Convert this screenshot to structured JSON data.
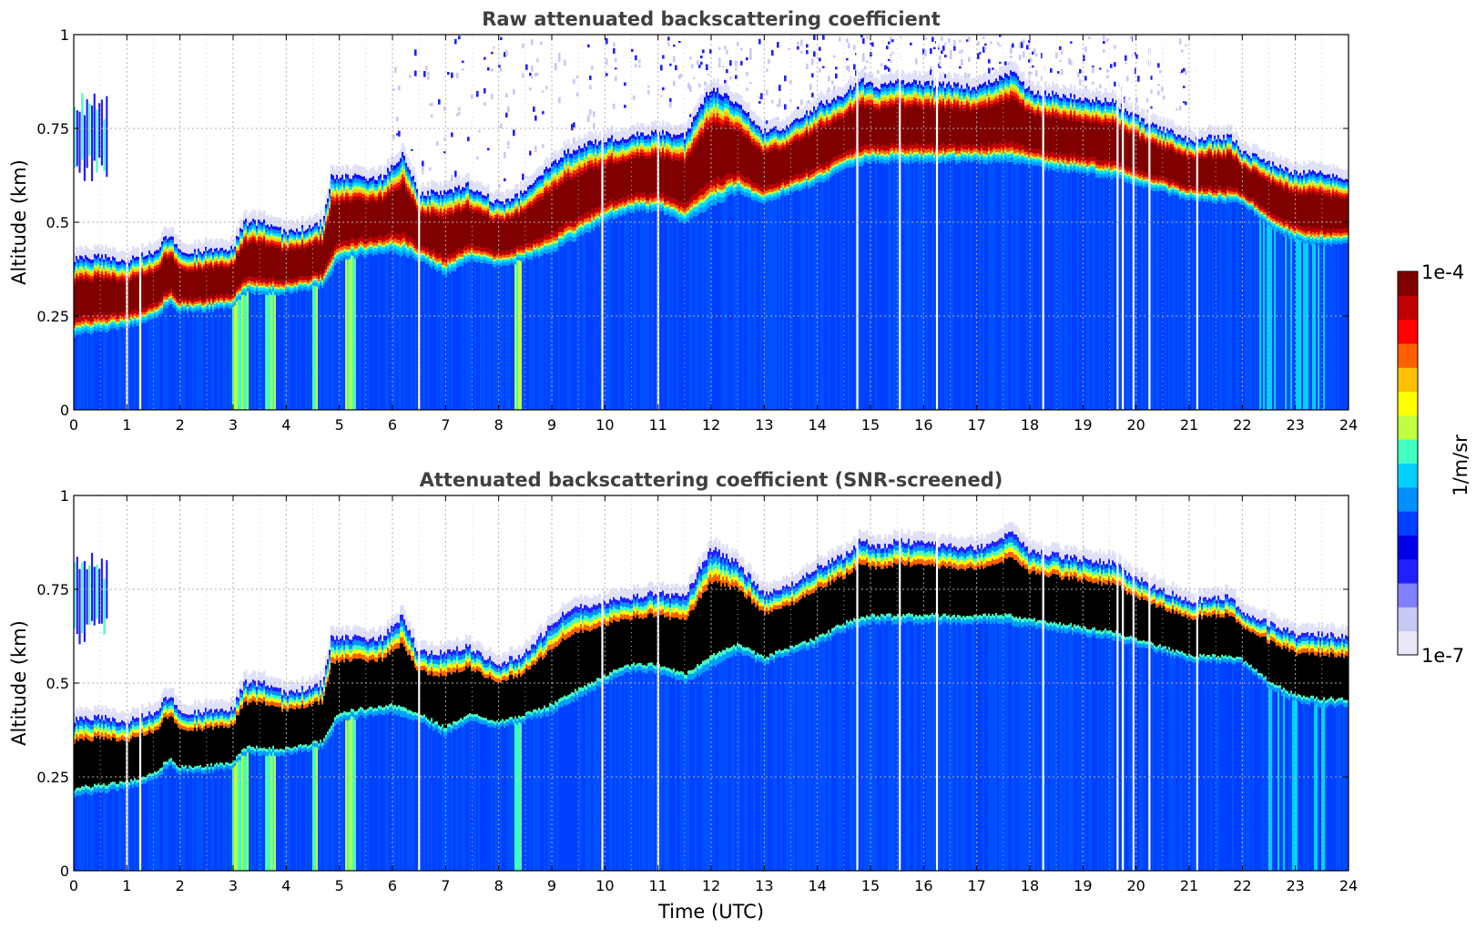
{
  "chart_data": [
    {
      "type": "heatmap",
      "title": "Raw attenuated backscattering coefficient",
      "ylabel": "Altitude (km)",
      "xlabel": "",
      "x_range": [
        0,
        24
      ],
      "y_range": [
        0,
        1
      ],
      "x_ticks": [
        "0",
        "1",
        "2",
        "3",
        "4",
        "5",
        "6",
        "7",
        "8",
        "9",
        "10",
        "11",
        "12",
        "13",
        "14",
        "15",
        "16",
        "17",
        "18",
        "19",
        "20",
        "21",
        "22",
        "23",
        "24"
      ],
      "y_ticks": [
        "0",
        "0.25",
        "0.5",
        "0.75",
        "1"
      ],
      "grid": true,
      "layer_base_km": [
        [
          0,
          0.2
        ],
        [
          0.6,
          0.21
        ],
        [
          1.0,
          0.22
        ],
        [
          1.5,
          0.24
        ],
        [
          1.8,
          0.28
        ],
        [
          2.0,
          0.26
        ],
        [
          3.0,
          0.27
        ],
        [
          3.2,
          0.31
        ],
        [
          4.0,
          0.31
        ],
        [
          4.7,
          0.33
        ],
        [
          5.0,
          0.4
        ],
        [
          5.8,
          0.42
        ],
        [
          6.0,
          0.42
        ],
        [
          6.5,
          0.4
        ],
        [
          7.0,
          0.36
        ],
        [
          7.5,
          0.4
        ],
        [
          8.0,
          0.38
        ],
        [
          8.5,
          0.4
        ],
        [
          9.0,
          0.42
        ],
        [
          9.5,
          0.46
        ],
        [
          10,
          0.5
        ],
        [
          10.5,
          0.53
        ],
        [
          11,
          0.53
        ],
        [
          11.5,
          0.5
        ],
        [
          12,
          0.54
        ],
        [
          12.5,
          0.58
        ],
        [
          13,
          0.55
        ],
        [
          13.5,
          0.58
        ],
        [
          14,
          0.6
        ],
        [
          14.5,
          0.64
        ],
        [
          15,
          0.66
        ],
        [
          15.5,
          0.66
        ],
        [
          16,
          0.66
        ],
        [
          17,
          0.66
        ],
        [
          17.5,
          0.66
        ],
        [
          18,
          0.65
        ],
        [
          19,
          0.63
        ],
        [
          19.5,
          0.62
        ],
        [
          20,
          0.6
        ],
        [
          21,
          0.56
        ],
        [
          22,
          0.55
        ],
        [
          22.5,
          0.49
        ],
        [
          23,
          0.45
        ],
        [
          23.5,
          0.44
        ],
        [
          24,
          0.44
        ]
      ],
      "layer_top_km": [
        [
          0,
          0.4
        ],
        [
          0.6,
          0.41
        ],
        [
          1.0,
          0.4
        ],
        [
          1.5,
          0.42
        ],
        [
          1.8,
          0.47
        ],
        [
          2.0,
          0.42
        ],
        [
          3.0,
          0.43
        ],
        [
          3.2,
          0.5
        ],
        [
          3.6,
          0.5
        ],
        [
          4.0,
          0.47
        ],
        [
          4.7,
          0.5
        ],
        [
          4.85,
          0.62
        ],
        [
          5.8,
          0.62
        ],
        [
          6.2,
          0.68
        ],
        [
          6.5,
          0.58
        ],
        [
          7.0,
          0.58
        ],
        [
          7.4,
          0.6
        ],
        [
          8.0,
          0.55
        ],
        [
          8.5,
          0.58
        ],
        [
          8.9,
          0.64
        ],
        [
          9.2,
          0.68
        ],
        [
          9.5,
          0.7
        ],
        [
          10,
          0.72
        ],
        [
          10.5,
          0.73
        ],
        [
          11,
          0.74
        ],
        [
          11.5,
          0.73
        ],
        [
          12,
          0.86
        ],
        [
          12.5,
          0.82
        ],
        [
          13,
          0.74
        ],
        [
          13.5,
          0.76
        ],
        [
          14,
          0.81
        ],
        [
          14.5,
          0.84
        ],
        [
          14.8,
          0.88
        ],
        [
          15.2,
          0.86
        ],
        [
          15.5,
          0.88
        ],
        [
          16,
          0.87
        ],
        [
          17,
          0.86
        ],
        [
          17.7,
          0.9
        ],
        [
          18,
          0.85
        ],
        [
          19,
          0.83
        ],
        [
          19.6,
          0.82
        ],
        [
          20,
          0.78
        ],
        [
          21,
          0.72
        ],
        [
          21.8,
          0.73
        ],
        [
          22,
          0.69
        ],
        [
          22.5,
          0.66
        ],
        [
          23,
          0.63
        ],
        [
          23.5,
          0.63
        ],
        [
          24,
          0.62
        ]
      ],
      "early_cloud": {
        "x_range": [
          0,
          0.65
        ],
        "base_km": 0.6,
        "top_km": 0.85
      },
      "gaps_utc": [
        1.0,
        1.25,
        6.5,
        9.95,
        11.0,
        14.75,
        15.55,
        16.25,
        18.25,
        19.65,
        19.75,
        19.95,
        20.25,
        21.15
      ],
      "bright_columns_utc": [
        [
          3.0,
          3.3
        ],
        [
          3.6,
          3.8
        ],
        [
          4.5,
          4.6
        ],
        [
          5.1,
          5.3
        ],
        [
          8.3,
          8.45
        ]
      ]
    },
    {
      "type": "heatmap",
      "title": "Attenuated backscattering coefficient (SNR-screened)",
      "ylabel": "Altitude (km)",
      "xlabel": "Time (UTC)",
      "x_range": [
        0,
        24
      ],
      "y_range": [
        0,
        1
      ],
      "x_ticks": [
        "0",
        "1",
        "2",
        "3",
        "4",
        "5",
        "6",
        "7",
        "8",
        "9",
        "10",
        "11",
        "12",
        "13",
        "14",
        "15",
        "16",
        "17",
        "18",
        "19",
        "20",
        "21",
        "22",
        "23",
        "24"
      ],
      "y_ticks": [
        "0",
        "0.25",
        "0.5",
        "0.75",
        "1"
      ],
      "grid": true,
      "screened_core": "black",
      "same_layers_as": 0
    }
  ],
  "colorbar": {
    "label": "1/m/sr",
    "max_label": "1e-4",
    "min_label": "1e-7",
    "colors": [
      "#e8e8f8",
      "#c8c8f4",
      "#8080ff",
      "#2020ff",
      "#0000e8",
      "#0040ff",
      "#0090ff",
      "#00d0ff",
      "#40ffc0",
      "#c0ff40",
      "#ffff00",
      "#ffc000",
      "#ff6000",
      "#ff0000",
      "#c00000",
      "#800000"
    ]
  }
}
